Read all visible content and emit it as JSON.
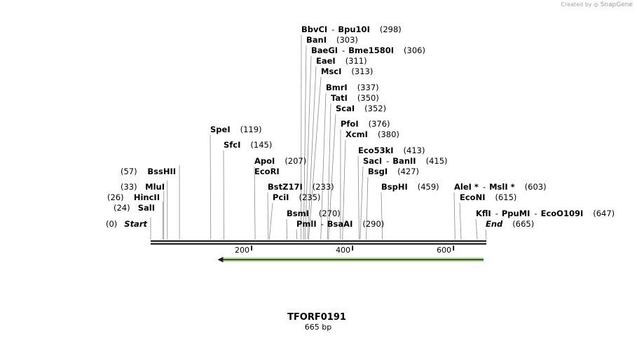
{
  "credit": {
    "prefix": "Created by",
    "brand": "SnapGene"
  },
  "map": {
    "name": "TFORF0191",
    "length_label": "665 bp",
    "length_bp": 665,
    "ruler_ticks": [
      "200",
      "400",
      "600"
    ],
    "ruler_tick_values": [
      200,
      400,
      600
    ],
    "feature_arrow": {
      "start": 145,
      "end": 665,
      "direction": "reverse",
      "color": "#6fbf3a"
    },
    "sites": [
      {
        "label": "Start",
        "pos_label": "(0)",
        "pos": 0,
        "italic": true
      },
      {
        "label": "SalI",
        "pos_label": "(24)",
        "pos": 24
      },
      {
        "label": "HincII",
        "pos_label": "(26)",
        "pos": 26
      },
      {
        "label": "MluI",
        "pos_label": "(33)",
        "pos": 33
      },
      {
        "label": "BssHII",
        "pos_label": "(57)",
        "pos": 57
      },
      {
        "label": "SpeI",
        "pos_label": "(119)",
        "pos": 119
      },
      {
        "label": "SfcI",
        "pos_label": "(145)",
        "pos": 145
      },
      {
        "label": "ApoI",
        "pos_label": "(207)",
        "pos": 207
      },
      {
        "label": "EcoRI",
        "pos_label": "",
        "pos": 207
      },
      {
        "label": "BstZ17I",
        "pos_label": "(233)",
        "pos": 233
      },
      {
        "label": "PciI",
        "pos_label": "(235)",
        "pos": 235
      },
      {
        "label": "BsmI",
        "pos_label": "(270)",
        "pos": 270
      },
      {
        "label": "PmlI",
        "label2": "BsaAI",
        "pos_label": "(290)",
        "pos": 290
      },
      {
        "label": "BbvCI",
        "label2": "Bpu10I",
        "pos_label": "(298)",
        "pos": 298
      },
      {
        "label": "BanI",
        "pos_label": "(303)",
        "pos": 303
      },
      {
        "label": "BaeGI",
        "label2": "Bme1580I",
        "pos_label": "(306)",
        "pos": 306
      },
      {
        "label": "EaeI",
        "pos_label": "(311)",
        "pos": 311
      },
      {
        "label": "MscI",
        "pos_label": "(313)",
        "pos": 313
      },
      {
        "label": "BmrI",
        "pos_label": "(337)",
        "pos": 337
      },
      {
        "label": "TatI",
        "pos_label": "(350)",
        "pos": 350
      },
      {
        "label": "ScaI",
        "pos_label": "(352)",
        "pos": 352
      },
      {
        "label": "PfoI",
        "pos_label": "(376)",
        "pos": 376
      },
      {
        "label": "XcmI",
        "pos_label": "(380)",
        "pos": 380
      },
      {
        "label": "Eco53kI",
        "pos_label": "(413)",
        "pos": 413
      },
      {
        "label": "SacI",
        "label2": "BanII",
        "pos_label": "(415)",
        "pos": 415
      },
      {
        "label": "BsgI",
        "pos_label": "(427)",
        "pos": 427
      },
      {
        "label": "BspHI",
        "pos_label": "(459)",
        "pos": 459
      },
      {
        "label": "AleI *",
        "label2": "MslI *",
        "pos_label": "(603)",
        "pos": 603
      },
      {
        "label": "EcoNI",
        "pos_label": "(615)",
        "pos": 615
      },
      {
        "label": "KflI",
        "label2": "PpuMI",
        "label3": "EcoO109I",
        "pos_label": "(647)",
        "pos": 647
      },
      {
        "label": "End",
        "pos_label": "(665)",
        "pos": 665,
        "italic": true
      }
    ]
  }
}
